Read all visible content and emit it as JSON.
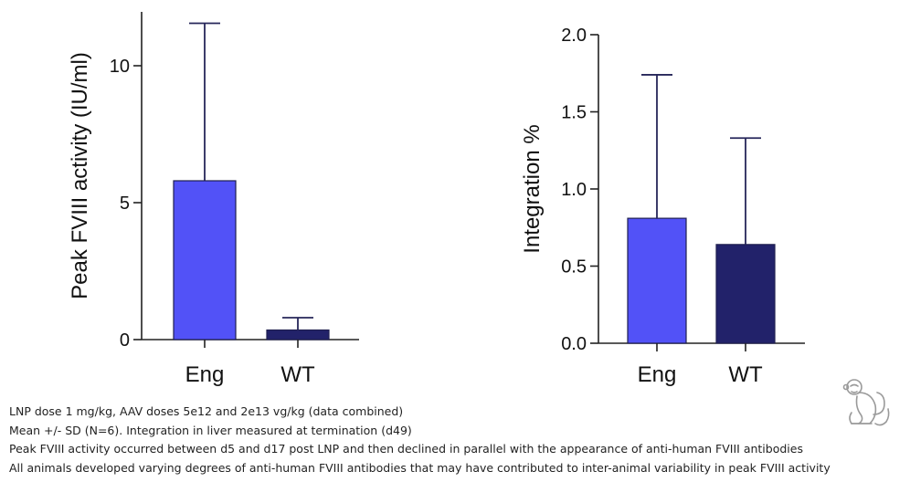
{
  "chart_data": [
    {
      "type": "bar",
      "categories": [
        "Eng",
        "WT"
      ],
      "values": [
        5.8,
        0.35
      ],
      "error_sd": [
        5.75,
        0.45
      ],
      "title": "",
      "xlabel": "",
      "ylabel": "Peak FVIII activity (IU/ml)",
      "ylim": [
        0,
        12
      ],
      "yticks": [
        0,
        5,
        10
      ],
      "ytick_labels": [
        "0",
        "5",
        "10"
      ],
      "bar_colors": [
        "#5252f7",
        "#22226a"
      ],
      "grid": false
    },
    {
      "type": "bar",
      "categories": [
        "Eng",
        "WT"
      ],
      "values": [
        0.81,
        0.64
      ],
      "error_sd": [
        0.93,
        0.69
      ],
      "title": "",
      "xlabel": "",
      "ylabel": "Integration %",
      "ylim": [
        0,
        2.0
      ],
      "yticks": [
        0,
        0.5,
        1.0,
        1.5,
        2.0
      ],
      "ytick_labels": [
        "0.0",
        "0.5",
        "1.0",
        "1.5",
        "2.0"
      ],
      "bar_colors": [
        "#5252f7",
        "#22226a"
      ],
      "grid": false
    }
  ],
  "footnotes": [
    "LNP dose 1 mg/kg, AAV doses 5e12 and 2e13 vg/kg (data combined)",
    "Mean +/- SD (N=6). Integration in liver measured at termination (d49)",
    "Peak FVIII activity occurred between d5 and d17 post LNP and then declined in parallel with the appearance of anti-human FVIII antibodies",
    "All animals developed varying degrees of anti-human FVIII antibodies that may have contributed to inter-animal variability in peak FVIII activity"
  ],
  "icons": {
    "species": "monkey-icon"
  },
  "colors": {
    "eng_bar": "#5252f7",
    "wt_bar": "#22226a",
    "icon_stroke": "#9a9a9a"
  }
}
